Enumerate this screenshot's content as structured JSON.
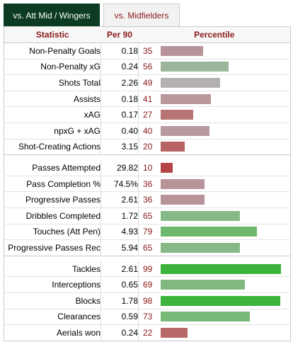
{
  "tabs": [
    {
      "label": "vs. Att Mid / Wingers",
      "active": true
    },
    {
      "label": "vs. Midfielders",
      "active": false
    }
  ],
  "columns": {
    "statistic": "Statistic",
    "per90": "Per 90",
    "percentile": "Percentile"
  },
  "groups": [
    [
      {
        "stat": "Non-Penalty Goals",
        "per90": "0.18",
        "pct": "35",
        "pct_value": 35,
        "color": "#b8939a"
      },
      {
        "stat": "Non-Penalty xG",
        "per90": "0.24",
        "pct": "56",
        "pct_value": 56,
        "color": "#9ab59a"
      },
      {
        "stat": "Shots Total",
        "per90": "2.26",
        "pct": "49",
        "pct_value": 49,
        "color": "#b5b0b0"
      },
      {
        "stat": "Assists",
        "per90": "0.18",
        "pct": "41",
        "pct_value": 41,
        "color": "#b8969a"
      },
      {
        "stat": "xAG",
        "per90": "0.17",
        "pct": "27",
        "pct_value": 27,
        "color": "#b87474"
      },
      {
        "stat": "npxG + xAG",
        "per90": "0.40",
        "pct": "40",
        "pct_value": 40,
        "color": "#b89a9e"
      },
      {
        "stat": "Shot-Creating Actions",
        "per90": "3.15",
        "pct": "20",
        "pct_value": 20,
        "color": "#b86464"
      }
    ],
    [
      {
        "stat": "Passes Attempted",
        "per90": "29.82",
        "pct": "10",
        "pct_value": 10,
        "color": "#b54545"
      },
      {
        "stat": "Pass Completion %",
        "per90": "74.5%",
        "pct": "36",
        "pct_value": 36,
        "color": "#b8939a"
      },
      {
        "stat": "Progressive Passes",
        "per90": "2.61",
        "pct": "36",
        "pct_value": 36,
        "color": "#b8939a"
      },
      {
        "stat": "Dribbles Completed",
        "per90": "1.72",
        "pct": "65",
        "pct_value": 65,
        "color": "#87b887"
      },
      {
        "stat": "Touches (Att Pen)",
        "per90": "4.93",
        "pct": "79",
        "pct_value": 79,
        "color": "#6cb86c"
      },
      {
        "stat": "Progressive Passes Rec",
        "per90": "5.94",
        "pct": "65",
        "pct_value": 65,
        "color": "#87b887"
      }
    ],
    [
      {
        "stat": "Tackles",
        "per90": "2.61",
        "pct": "99",
        "pct_value": 99,
        "color": "#3cb43c"
      },
      {
        "stat": "Interceptions",
        "per90": "0.65",
        "pct": "69",
        "pct_value": 69,
        "color": "#80b880"
      },
      {
        "stat": "Blocks",
        "per90": "1.78",
        "pct": "98",
        "pct_value": 98,
        "color": "#3cb43c"
      },
      {
        "stat": "Clearances",
        "per90": "0.59",
        "pct": "73",
        "pct_value": 73,
        "color": "#77b877"
      },
      {
        "stat": "Aerials won",
        "per90": "0.24",
        "pct": "22",
        "pct_value": 22,
        "color": "#b86868"
      }
    ]
  ]
}
